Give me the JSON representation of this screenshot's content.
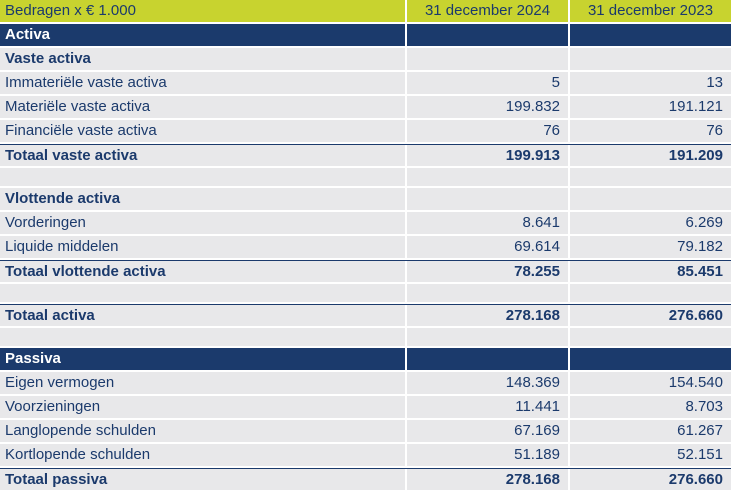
{
  "table": {
    "header": {
      "label": "Bedragen x € 1.000",
      "col2024": "31 december 2024",
      "col2023": "31 december 2023"
    },
    "rows": [
      {
        "label": "Activa",
        "v2024": "",
        "v2023": ""
      },
      {
        "label": "Vaste activa",
        "v2024": "",
        "v2023": ""
      },
      {
        "label": "Immateriële vaste activa",
        "v2024": "5",
        "v2023": "13"
      },
      {
        "label": "Materiële vaste activa",
        "v2024": "199.832",
        "v2023": "191.121"
      },
      {
        "label": "Financiële vaste activa",
        "v2024": "76",
        "v2023": "76"
      },
      {
        "label": "Totaal vaste activa",
        "v2024": "199.913",
        "v2023": "191.209"
      },
      {
        "label": "Vlottende activa",
        "v2024": "",
        "v2023": ""
      },
      {
        "label": "Vorderingen",
        "v2024": "8.641",
        "v2023": "6.269"
      },
      {
        "label": "Liquide middelen",
        "v2024": "69.614",
        "v2023": "79.182"
      },
      {
        "label": "Totaal vlottende activa",
        "v2024": "78.255",
        "v2023": "85.451"
      },
      {
        "label": "Totaal activa",
        "v2024": "278.168",
        "v2023": "276.660"
      },
      {
        "label": "Passiva",
        "v2024": "",
        "v2023": ""
      },
      {
        "label": "Eigen vermogen",
        "v2024": "148.369",
        "v2023": "154.540"
      },
      {
        "label": "Voorzieningen",
        "v2024": "11.441",
        "v2023": "8.703"
      },
      {
        "label": "Langlopende schulden",
        "v2024": "67.169",
        "v2023": "61.267"
      },
      {
        "label": "Kortlopende schulden",
        "v2024": "51.189",
        "v2023": "52.151"
      },
      {
        "label": "Totaal passiva",
        "v2024": "278.168",
        "v2023": "276.660"
      }
    ],
    "colors": {
      "accent_yellow": "#c8d32f",
      "navy": "#1b3a6c",
      "row_gray": "#e8e8ea"
    }
  }
}
